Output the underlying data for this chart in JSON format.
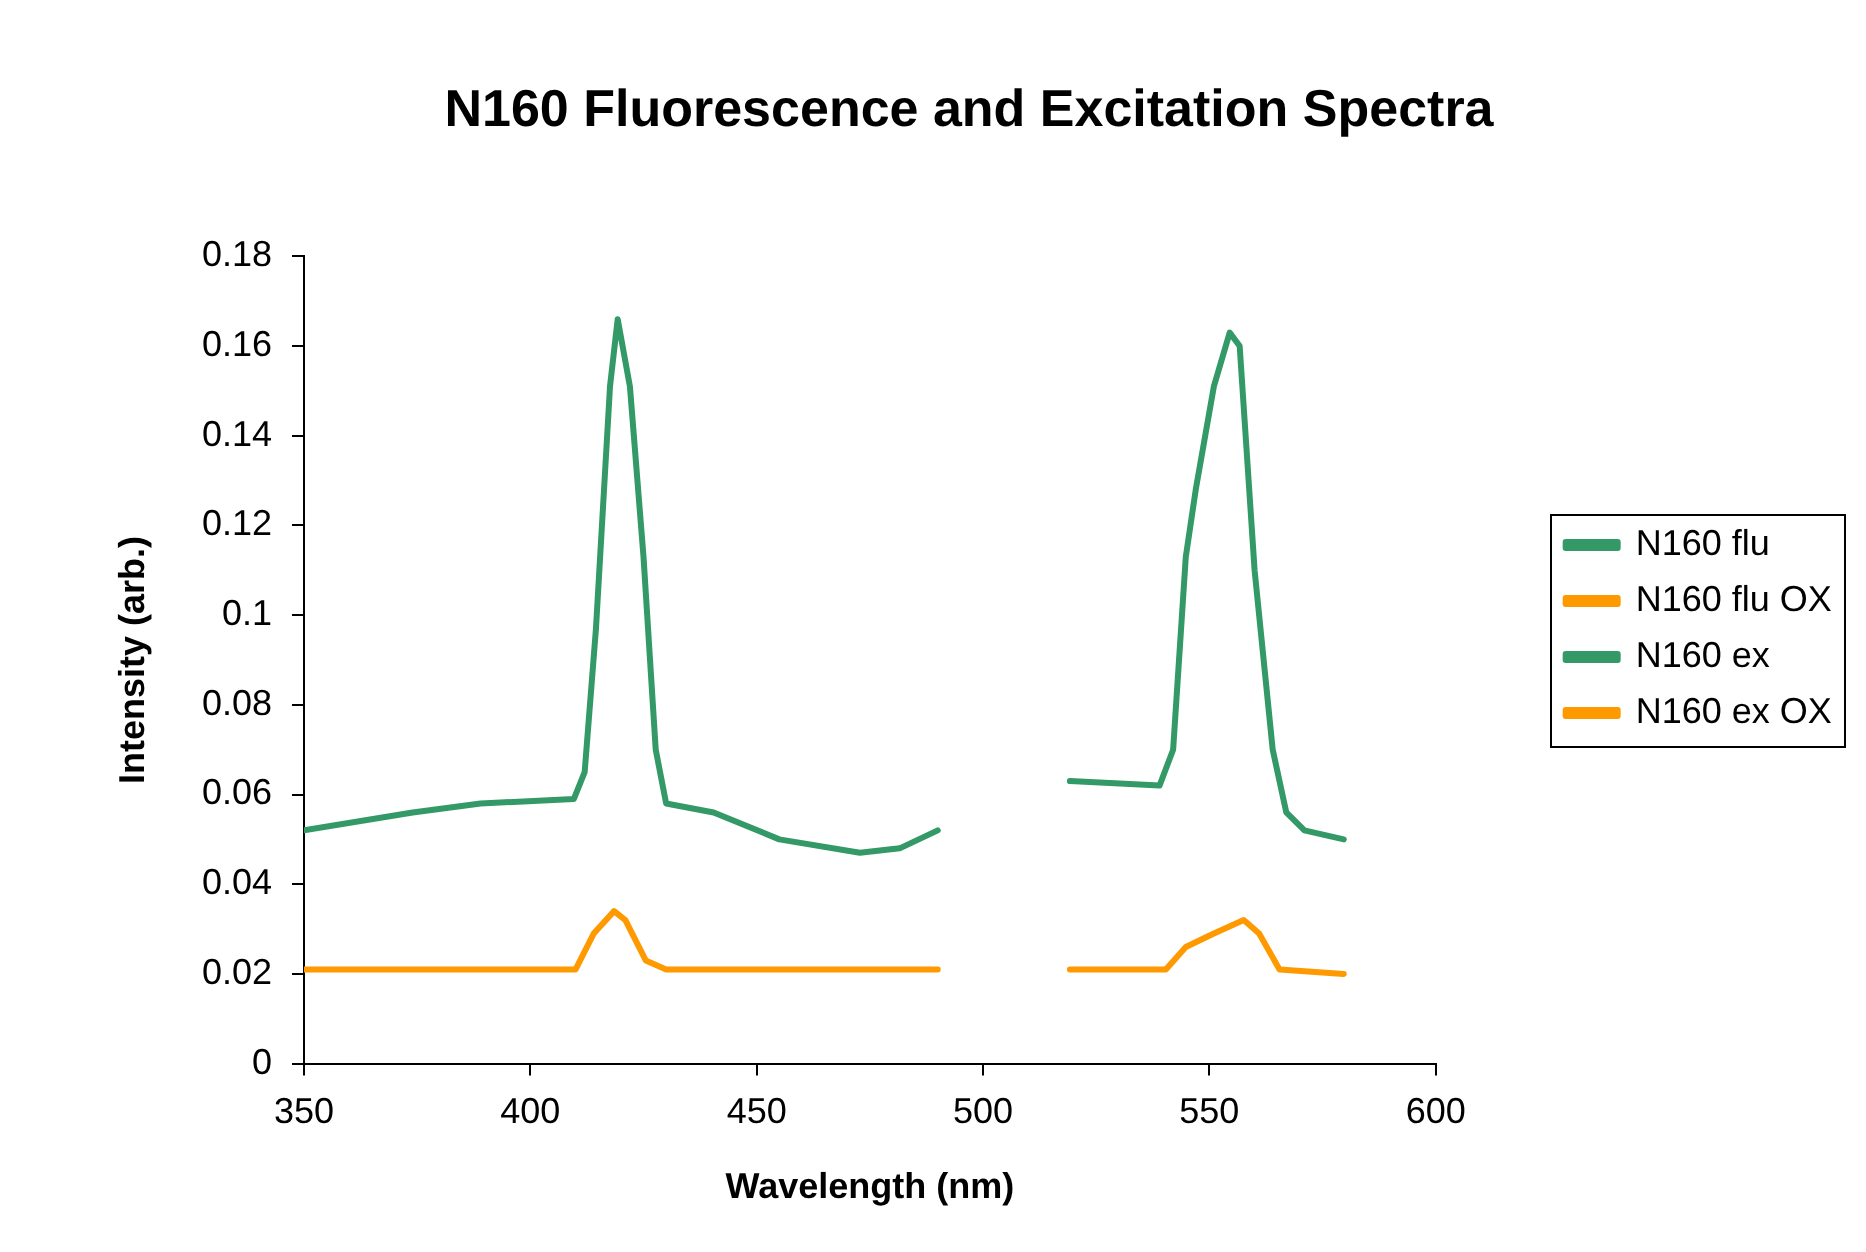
{
  "chart_data": {
    "type": "line",
    "title": "N160 Fluorescence and Excitation Spectra",
    "xlabel": "Wavelength (nm)",
    "ylabel": "Intensity (arb.)",
    "xlim": [
      350,
      600
    ],
    "xticks": [
      350,
      400,
      450,
      500,
      550,
      600
    ],
    "ylim": [
      0,
      0.18
    ],
    "yticks": [
      0,
      0.02,
      0.04,
      0.06,
      0.08,
      0.1,
      0.12,
      0.14,
      0.16,
      0.18
    ],
    "grid": false,
    "legend": "right",
    "marker": "none",
    "line_style": "solid",
    "series": [
      {
        "name": "N160 flu",
        "color": "#339966",
        "x": [
          519.2,
          539,
          542,
          544.8,
          547,
          551,
          554.5,
          556.7,
          560,
          564,
          567,
          571,
          579.7
        ],
        "values": [
          0.063,
          0.062,
          0.07,
          0.113,
          0.128,
          0.151,
          0.163,
          0.16,
          0.11,
          0.07,
          0.056,
          0.052,
          0.05
        ]
      },
      {
        "name": "N160 flu OX",
        "color": "#ff9900",
        "x": [
          519.2,
          540.4,
          544.8,
          551,
          557.6,
          561,
          565.5,
          579.7
        ],
        "values": [
          0.021,
          0.021,
          0.026,
          0.029,
          0.032,
          0.029,
          0.021,
          0.02
        ]
      },
      {
        "name": "N160 ex",
        "color": "#339966",
        "x": [
          350,
          374,
          389,
          409.6,
          412,
          414.5,
          417.6,
          419.3,
          422,
          425,
          427.7,
          430,
          440.5,
          455,
          472.8,
          481.6,
          490
        ],
        "values": [
          0.052,
          0.056,
          0.058,
          0.059,
          0.065,
          0.097,
          0.151,
          0.166,
          0.151,
          0.113,
          0.07,
          0.058,
          0.056,
          0.05,
          0.047,
          0.048,
          0.052
        ]
      },
      {
        "name": "N160 ex OX",
        "color": "#ff9900",
        "x": [
          350,
          410,
          414,
          418.5,
          421,
          425.5,
          430,
          490
        ],
        "values": [
          0.021,
          0.021,
          0.029,
          0.034,
          0.032,
          0.023,
          0.021,
          0.021
        ]
      }
    ]
  }
}
